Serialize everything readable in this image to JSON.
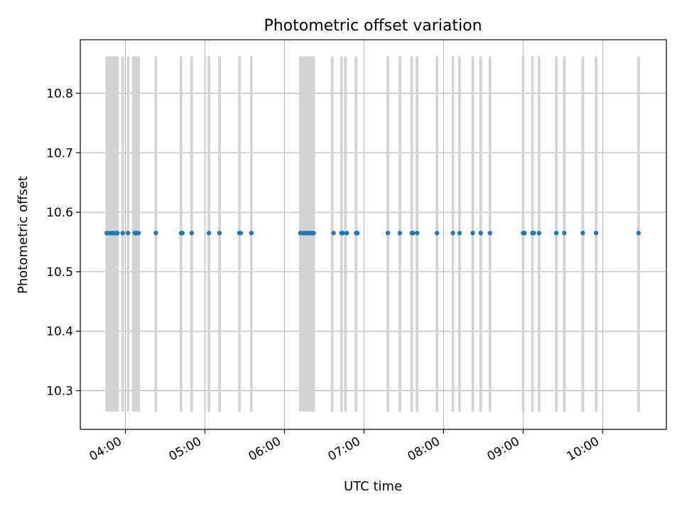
{
  "chart_data": {
    "type": "scatter",
    "title": "Photometric offset variation",
    "xlabel": "UTC time",
    "ylabel": "Photometric offset",
    "xlim": [
      "03:26",
      "10:48"
    ],
    "ylim": [
      10.235,
      10.89
    ],
    "x_ticks": [
      "04:00",
      "05:00",
      "06:00",
      "07:00",
      "08:00",
      "09:00",
      "10:00"
    ],
    "y_ticks": [
      10.3,
      10.4,
      10.5,
      10.6,
      10.7,
      10.8
    ],
    "grid": true,
    "colors": {
      "points": "#1f77b4",
      "bands": "#d3d3d3"
    },
    "band_range": [
      10.265,
      10.862
    ],
    "bands": [
      [
        "03:45",
        "03:55"
      ],
      [
        "03:57",
        "03:59"
      ],
      [
        "04:01",
        "04:03"
      ],
      [
        "04:05",
        "04:11"
      ],
      [
        "04:22",
        "04:24"
      ],
      [
        "04:41",
        "04:43"
      ],
      [
        "04:49",
        "04:51"
      ],
      [
        "05:02",
        "05:04"
      ],
      [
        "05:10",
        "05:12"
      ],
      [
        "05:25",
        "05:27"
      ],
      [
        "05:34",
        "05:36"
      ],
      [
        "06:11",
        "06:23"
      ],
      [
        "06:35",
        "06:37"
      ],
      [
        "06:42",
        "06:44"
      ],
      [
        "06:45",
        "06:47"
      ],
      [
        "06:53",
        "06:55"
      ],
      [
        "07:17",
        "07:19"
      ],
      [
        "07:26",
        "07:28"
      ],
      [
        "07:35",
        "07:37"
      ],
      [
        "07:39",
        "07:41"
      ],
      [
        "07:54",
        "07:56"
      ],
      [
        "08:06",
        "08:08"
      ],
      [
        "08:11",
        "08:13"
      ],
      [
        "08:21",
        "08:23"
      ],
      [
        "08:27",
        "08:29"
      ],
      [
        "08:34",
        "08:36"
      ],
      [
        "08:59",
        "09:01"
      ],
      [
        "09:06",
        "09:08"
      ],
      [
        "09:11",
        "09:13"
      ],
      [
        "09:24",
        "09:26"
      ],
      [
        "09:30",
        "09:32"
      ],
      [
        "09:44",
        "09:46"
      ],
      [
        "09:54",
        "09:56"
      ],
      [
        "10:26",
        "10:28"
      ]
    ],
    "series": [
      {
        "x": [
          "03:46",
          "03:48",
          "03:49",
          "03:50",
          "03:51",
          "03:52",
          "03:53",
          "03:54",
          "03:58",
          "04:02",
          "04:07",
          "04:08",
          "04:09",
          "04:10",
          "04:23",
          "04:42",
          "04:43",
          "04:50",
          "05:03",
          "05:11",
          "05:26",
          "05:27",
          "05:35",
          "06:12",
          "06:14",
          "06:15",
          "06:16",
          "06:17",
          "06:18",
          "06:19",
          "06:20",
          "06:21",
          "06:22",
          "06:37",
          "06:43",
          "06:44",
          "06:47",
          "06:54",
          "06:55",
          "07:18",
          "07:27",
          "07:36",
          "07:37",
          "07:40",
          "07:55",
          "08:07",
          "08:12",
          "08:22",
          "08:28",
          "08:35",
          "09:00",
          "09:01",
          "09:07",
          "09:08",
          "09:12",
          "09:25",
          "09:31",
          "09:45",
          "09:55",
          "10:27"
        ],
        "y": [
          10.565,
          10.565,
          10.565,
          10.565,
          10.565,
          10.565,
          10.565,
          10.565,
          10.565,
          10.565,
          10.565,
          10.565,
          10.565,
          10.565,
          10.565,
          10.565,
          10.565,
          10.565,
          10.565,
          10.565,
          10.565,
          10.565,
          10.565,
          10.565,
          10.565,
          10.565,
          10.565,
          10.565,
          10.565,
          10.565,
          10.565,
          10.565,
          10.565,
          10.565,
          10.565,
          10.565,
          10.565,
          10.565,
          10.565,
          10.565,
          10.565,
          10.565,
          10.565,
          10.565,
          10.565,
          10.565,
          10.565,
          10.565,
          10.565,
          10.565,
          10.565,
          10.565,
          10.565,
          10.565,
          10.565,
          10.565,
          10.565,
          10.565,
          10.565,
          10.565
        ]
      }
    ]
  }
}
